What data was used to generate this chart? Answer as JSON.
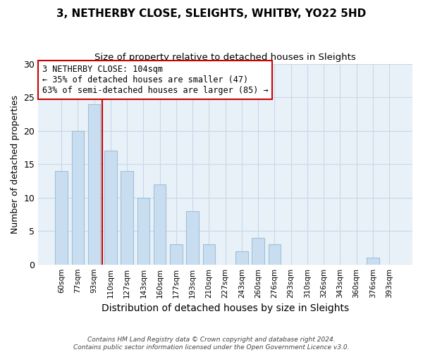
{
  "title": "3, NETHERBY CLOSE, SLEIGHTS, WHITBY, YO22 5HD",
  "subtitle": "Size of property relative to detached houses in Sleights",
  "xlabel": "Distribution of detached houses by size in Sleights",
  "ylabel": "Number of detached properties",
  "bar_color": "#c8ddf0",
  "bar_edge_color": "#a0c0d8",
  "grid_color": "#c8d8e8",
  "background_color": "#e8f0f8",
  "annotation_box_edge": "#cc0000",
  "annotation_line_color": "#cc0000",
  "annotation_text_line1": "3 NETHERBY CLOSE: 104sqm",
  "annotation_text_line2": "← 35% of detached houses are smaller (47)",
  "annotation_text_line3": "63% of semi-detached houses are larger (85) →",
  "marker_line_color": "#cc0000",
  "categories": [
    "60sqm",
    "77sqm",
    "93sqm",
    "110sqm",
    "127sqm",
    "143sqm",
    "160sqm",
    "177sqm",
    "193sqm",
    "210sqm",
    "227sqm",
    "243sqm",
    "260sqm",
    "276sqm",
    "293sqm",
    "310sqm",
    "326sqm",
    "343sqm",
    "360sqm",
    "376sqm",
    "393sqm"
  ],
  "values": [
    14,
    20,
    24,
    17,
    14,
    10,
    12,
    3,
    8,
    3,
    0,
    2,
    4,
    3,
    0,
    0,
    0,
    0,
    0,
    1,
    0
  ],
  "ylim": [
    0,
    30
  ],
  "yticks": [
    0,
    5,
    10,
    15,
    20,
    25,
    30
  ],
  "footer_line1": "Contains HM Land Registry data © Crown copyright and database right 2024.",
  "footer_line2": "Contains public sector information licensed under the Open Government Licence v3.0."
}
